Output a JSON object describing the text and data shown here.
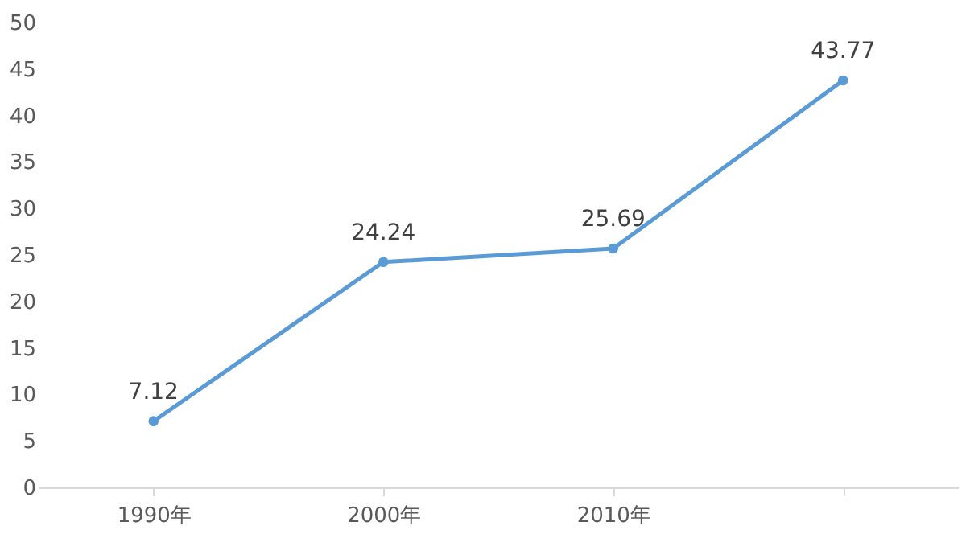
{
  "chart_data": {
    "type": "line",
    "categories": [
      "1990年",
      "2000年",
      "2010年",
      null
    ],
    "values": [
      7.12,
      24.24,
      25.69,
      43.77
    ],
    "color": "#5b9bd5",
    "ylim": [
      0,
      50
    ],
    "yticks": [
      0,
      5,
      10,
      15,
      20,
      25,
      30,
      35,
      40,
      45,
      50
    ],
    "grid": false,
    "marker": "circle",
    "data_labels": true
  }
}
